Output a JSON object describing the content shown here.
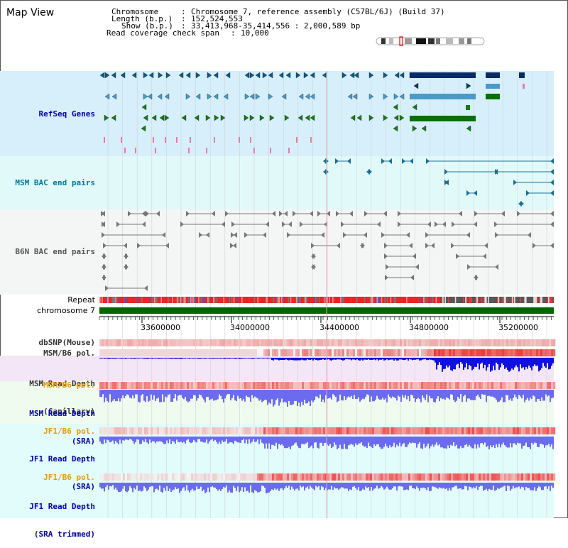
{
  "page": {
    "title": "Map View"
  },
  "header": {
    "chromosome_key": "Chromosome",
    "chromosome_value": "Chromosome 7, reference assembly (C57BL/6J) (Build 37)",
    "length_key": "Length (b.p.)",
    "length_value": "152,524,553",
    "show_key": "Show (b.p.)",
    "show_value": "33,413,968-35,414,556 : 2,000,589 bp",
    "coverage_key": "Read coverage check span",
    "coverage_value": "10,000"
  },
  "tracks": {
    "refseq": {
      "label": "RefSeq Genes",
      "color": "#0000aa"
    },
    "msm_bac": {
      "label": "MSM BAC end pairs",
      "color": "#007799"
    },
    "b6n_bac": {
      "label": "B6N BAC end pairs",
      "color": "#555555"
    },
    "repeat": {
      "label": "Repeat"
    },
    "chromosome": {
      "label": "chromosome 7"
    },
    "dbsnp": {
      "label": "dbSNP(Mouse)"
    },
    "msm_b6_pol_1": {
      "label": "MSM/B6 pol."
    },
    "msm_depth_cap": {
      "label_line1": "MSM Read Depth",
      "label_line2": "(Capillary)"
    },
    "msm_b6_pol_2": {
      "label": "MSM/B6 pol.",
      "color": "#ee9900"
    },
    "msm_depth_sra": {
      "label_line1": "MSM Read Depth",
      "label_line2": "(SRA)",
      "color": "#0000aa"
    },
    "jf1_b6_pol_1": {
      "label": "JF1/B6 pol.",
      "color": "#ee9900"
    },
    "jf1_depth_sra": {
      "label_line1": "JF1 Read Depth",
      "label_line2": "(SRA)",
      "color": "#0000aa"
    },
    "jf1_b6_pol_2": {
      "label": "JF1/B6 pol.",
      "color": "#ee9900"
    },
    "jf1_depth_trim": {
      "label_line1": "JF1 Read Depth",
      "label_line2": "(SRA trimmed)",
      "color": "#0000aa"
    }
  },
  "axis": {
    "ticks": [
      "33600000",
      "34000000",
      "34400000",
      "34800000",
      "35200000"
    ]
  },
  "colors": {
    "refseq_bg": "#d6effa",
    "msm_bac_bg": "#e2f9f9",
    "b6n_bac_bg": "#f4f6f6",
    "depth_bg": "#f3e6f7",
    "msm_sra_bg": "#effbef",
    "jf1_bg": "#e2fbfb",
    "chromosome_bar": "#006600",
    "depth_fill": "#6b6bf0",
    "depth_fill_dark": "#1010e0",
    "pol_red": "#e22222"
  }
}
